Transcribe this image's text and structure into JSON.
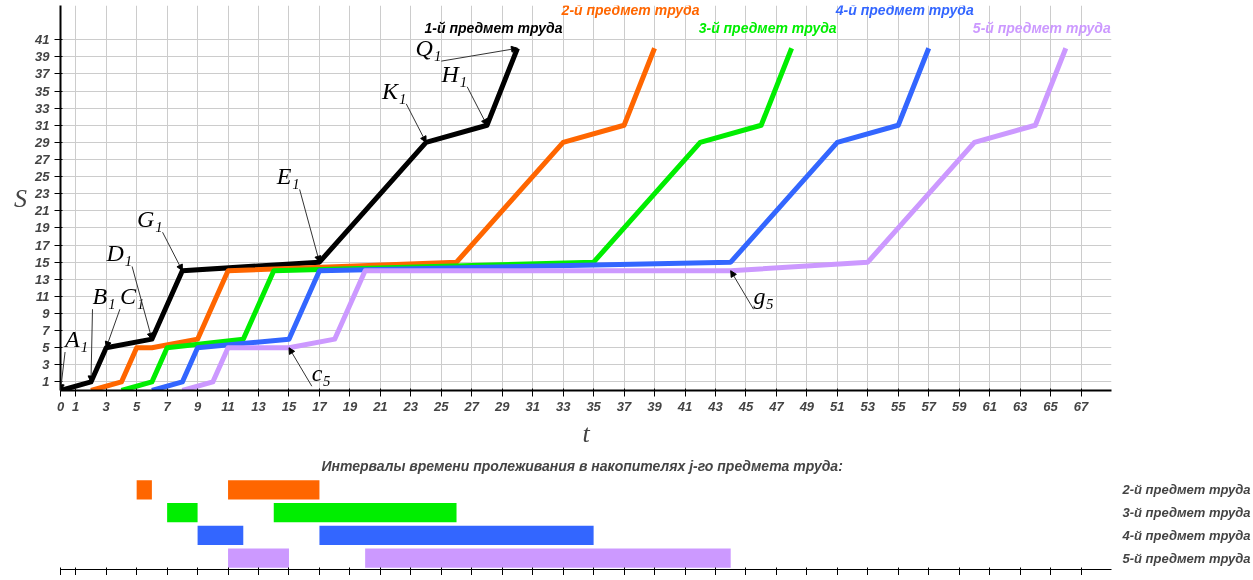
{
  "chart_data": [
    {
      "type": "line",
      "xlabel": "t",
      "ylabel": "S",
      "xlim": [
        0,
        69
      ],
      "ylim": [
        0,
        45
      ],
      "xticks": [
        0,
        1,
        3,
        5,
        7,
        9,
        11,
        13,
        15,
        17,
        19,
        21,
        23,
        25,
        27,
        29,
        31,
        33,
        35,
        37,
        39,
        41,
        43,
        45,
        47,
        49,
        51,
        53,
        55,
        57,
        59,
        61,
        63,
        65,
        67
      ],
      "yticks": [
        1,
        3,
        5,
        7,
        9,
        11,
        13,
        15,
        17,
        19,
        21,
        23,
        25,
        27,
        29,
        31,
        33,
        35,
        37,
        39,
        41
      ],
      "grid": true,
      "marker": "none",
      "line_style": "solid",
      "series": [
        {
          "name": "1-й предмет труда",
          "color": "#000000",
          "x": [
            0,
            2,
            3,
            6,
            8,
            17,
            24,
            28,
            30
          ],
          "values": [
            0,
            1,
            5,
            6,
            14,
            15,
            29,
            31,
            40
          ]
        },
        {
          "name": "2-й предмет труда",
          "color": "#ff6600",
          "x": [
            2,
            4,
            5,
            6,
            9,
            11,
            26,
            33,
            37,
            39
          ],
          "values": [
            0,
            1,
            5,
            5,
            6,
            14,
            15,
            29,
            31,
            40
          ]
        },
        {
          "name": "3-й предмет труда",
          "color": "#00ee00",
          "x": [
            4,
            6,
            7,
            12,
            14,
            35,
            42,
            46,
            48
          ],
          "values": [
            0,
            1,
            5,
            6,
            14,
            15,
            29,
            31,
            40
          ]
        },
        {
          "name": "4-й предмет труда",
          "color": "#3366ff",
          "x": [
            6,
            8,
            9,
            15,
            17,
            44,
            51,
            55,
            57
          ],
          "values": [
            0,
            1,
            5,
            6,
            14,
            15,
            29,
            31,
            40
          ]
        },
        {
          "name": "5-й предмет труда",
          "color": "#cc99ff",
          "x": [
            8,
            10,
            11,
            15,
            18,
            20,
            44,
            53,
            60,
            64,
            66
          ],
          "values": [
            0,
            1,
            5,
            5,
            6,
            14,
            14,
            15,
            29,
            31,
            40
          ]
        }
      ],
      "annotations": [
        {
          "text": "A₁",
          "x": 0,
          "y": 0
        },
        {
          "text": "B₁",
          "x": 2,
          "y": 1
        },
        {
          "text": "C₁",
          "x": 3,
          "y": 5
        },
        {
          "text": "D₁",
          "x": 6,
          "y": 6
        },
        {
          "text": "G₁",
          "x": 8,
          "y": 14
        },
        {
          "text": "E₁",
          "x": 17,
          "y": 15
        },
        {
          "text": "K₁",
          "x": 24,
          "y": 29
        },
        {
          "text": "H₁",
          "x": 28,
          "y": 31
        },
        {
          "text": "Q₁",
          "x": 30,
          "y": 40
        },
        {
          "text": "c₅",
          "x": 15,
          "y": 5
        },
        {
          "text": "g₅",
          "x": 44,
          "y": 14
        }
      ]
    },
    {
      "type": "bar",
      "orientation": "horizontal",
      "title": "Интервалы  времени пролеживания в накопителях  j-го предмета труда:",
      "categories": [
        "2-й предмет труда",
        "3-й предмет труда",
        "4-й предмет труда",
        "5-й предмет труда"
      ],
      "xlim": [
        0,
        69
      ],
      "xticks": [
        0,
        1,
        3,
        5,
        7,
        9,
        11,
        13,
        15,
        17,
        19,
        21,
        23,
        25,
        27,
        29,
        31,
        33,
        35,
        37,
        39,
        41,
        43,
        45,
        47,
        49,
        51,
        53,
        55,
        57,
        59,
        61,
        63,
        65,
        67
      ],
      "tick_labels": "y",
      "grid": false,
      "series": [
        {
          "values": [
            1,
            2,
            3,
            4
          ],
          "base": [
            5,
            7,
            9,
            11
          ],
          "colors": [
            "#ff6600",
            "#00ee00",
            "#3366ff",
            "#cc99ff"
          ]
        },
        {
          "values": [
            6,
            12,
            18,
            24
          ],
          "base": [
            11,
            14,
            17,
            20
          ],
          "colors": [
            "#ff6600",
            "#00ee00",
            "#3366ff",
            "#cc99ff"
          ]
        }
      ]
    }
  ]
}
